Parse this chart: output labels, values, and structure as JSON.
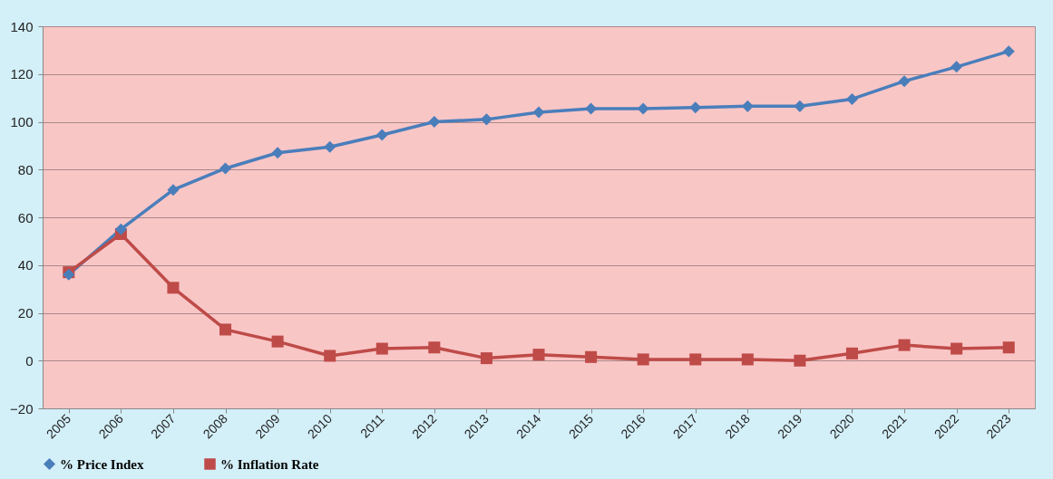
{
  "chart_data": {
    "type": "line",
    "categories": [
      "2005",
      "2006",
      "2007",
      "2008",
      "2009",
      "2010",
      "2011",
      "2012",
      "2013",
      "2014",
      "2015",
      "2016",
      "2017",
      "2018",
      "2019",
      "2020",
      "2021",
      "2022",
      "2023"
    ],
    "series": [
      {
        "name": "%  Price Index",
        "color": "#4a7ebb",
        "marker": "diamond",
        "values": [
          36,
          55,
          71.5,
          80.5,
          87,
          89.5,
          94.5,
          100,
          101,
          104,
          105.5,
          105.5,
          106,
          106.5,
          106.5,
          109.5,
          117,
          123,
          129.5
        ]
      },
      {
        "name": "%  Inflation Rate",
        "color": "#be4b48",
        "marker": "square",
        "values": [
          37,
          53,
          30.5,
          13,
          8,
          2,
          5,
          5.5,
          1,
          2.5,
          1.5,
          0.5,
          0.5,
          0.5,
          0,
          3,
          6.5,
          5,
          5.5
        ]
      }
    ],
    "ylim": [
      -20,
      140
    ],
    "yticks": [
      -20,
      0,
      20,
      40,
      60,
      80,
      100,
      120,
      140
    ],
    "grid": "y",
    "legend": "bottom"
  }
}
